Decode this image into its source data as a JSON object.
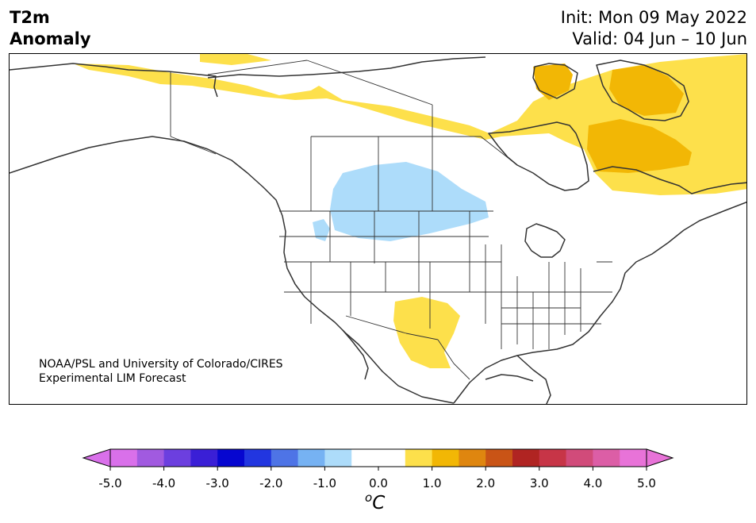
{
  "title": {
    "line1": "T2m",
    "line2": "Anomaly"
  },
  "info": {
    "init": "Init: Mon 09 May 2022",
    "valid": "Valid: 04 Jun – 10 Jun"
  },
  "credit": {
    "line1": "NOAA/PSL and University of Colorado/CIRES",
    "line2": "Experimental LIM Forecast"
  },
  "colorbar": {
    "tick_labels": [
      "-5.0",
      "-4.0",
      "-3.0",
      "-2.0",
      "-1.0",
      "0.0",
      "1.0",
      "2.0",
      "3.0",
      "4.0",
      "5.0"
    ],
    "unit_base": "C",
    "unit_sup": "o",
    "bins": [
      {
        "low": -5.0,
        "high": -4.5,
        "color": "#d970ea"
      },
      {
        "low": -4.5,
        "high": -4.0,
        "color": "#a15ae0"
      },
      {
        "low": -4.0,
        "high": -3.5,
        "color": "#6c3fdf"
      },
      {
        "low": -3.5,
        "high": -3.0,
        "color": "#3a1fd6"
      },
      {
        "low": -3.0,
        "high": -2.5,
        "color": "#0606d0"
      },
      {
        "low": -2.5,
        "high": -2.0,
        "color": "#2236e0"
      },
      {
        "low": -2.0,
        "high": -1.5,
        "color": "#4e74e6"
      },
      {
        "low": -1.5,
        "high": -1.0,
        "color": "#76b2f3"
      },
      {
        "low": -1.0,
        "high": -0.5,
        "color": "#addcfa"
      },
      {
        "low": -0.5,
        "high": 0.5,
        "color": "#ffffff"
      },
      {
        "low": 0.5,
        "high": 1.0,
        "color": "#fde04b"
      },
      {
        "low": 1.0,
        "high": 1.5,
        "color": "#f2b705"
      },
      {
        "low": 1.5,
        "high": 2.0,
        "color": "#df860f"
      },
      {
        "low": 2.0,
        "high": 2.5,
        "color": "#c95416"
      },
      {
        "low": 2.5,
        "high": 3.0,
        "color": "#b02422"
      },
      {
        "low": 3.0,
        "high": 3.5,
        "color": "#c73547"
      },
      {
        "low": 3.5,
        "high": 4.0,
        "color": "#d14b7a"
      },
      {
        "low": 4.0,
        "high": 4.5,
        "color": "#dc5ea6"
      },
      {
        "low": 4.5,
        "high": 5.0,
        "color": "#e873d8"
      }
    ],
    "extend_low_color": "#d970ea",
    "extend_high_color": "#e873d8"
  },
  "map": {
    "anomaly_regions": [
      {
        "name": "canadian-arctic-warm",
        "level": 0.75,
        "color": "#fde04b"
      },
      {
        "name": "baffin-island-warm",
        "level": 1.25,
        "color": "#f2b705"
      },
      {
        "name": "quebec-labrador-warm",
        "level": 1.25,
        "color": "#f2b705"
      },
      {
        "name": "northern-plains-cool",
        "level": -0.75,
        "color": "#addcfa"
      },
      {
        "name": "texas-mexico-warm",
        "level": 0.75,
        "color": "#fde04b"
      }
    ],
    "coastline_color": "#333333",
    "border_color": "#333333"
  }
}
